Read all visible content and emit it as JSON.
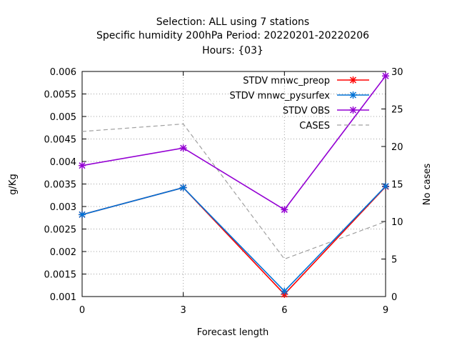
{
  "chart_data": {
    "type": "line",
    "title_lines": [
      "Selection: ALL using     7 stations",
      "Specific humidity 200hPa   Period: 20220201-20220206",
      "Hours: {03}"
    ],
    "xlabel": "Forecast length",
    "ylabel": "g/Kg",
    "y2label": "No cases",
    "x": [
      0,
      3,
      6,
      9
    ],
    "x_ticks": [
      "0",
      "3",
      "6",
      "9"
    ],
    "xlim": [
      0,
      9
    ],
    "ylim": [
      0.001,
      0.006
    ],
    "y_ticks": [
      "0.001",
      "0.0015",
      "0.002",
      "0.0025",
      "0.003",
      "0.0035",
      "0.004",
      "0.0045",
      "0.005",
      "0.0055",
      "0.006"
    ],
    "y2lim": [
      0,
      30
    ],
    "y2_ticks": [
      "0",
      "5",
      "10",
      "15",
      "20",
      "25",
      "30"
    ],
    "grid": true,
    "legend_position": "top-right",
    "series": [
      {
        "name": "STDV mnwc_preop",
        "axis": "y1",
        "color": "#ff0000",
        "style": "solid",
        "marker": "star",
        "values": [
          0.00282,
          0.00342,
          0.00105,
          0.00344
        ]
      },
      {
        "name": "STDV mnwc_pysurfex",
        "axis": "y1",
        "color": "#0072d6",
        "style": "solid",
        "marker": "star",
        "values": [
          0.00282,
          0.00342,
          0.00112,
          0.00345
        ]
      },
      {
        "name": "STDV OBS",
        "axis": "y1",
        "color": "#9400d3",
        "style": "solid",
        "marker": "star",
        "values": [
          0.00391,
          0.0043,
          0.00293,
          0.0059
        ]
      },
      {
        "name": "CASES",
        "axis": "y2",
        "color": "#a0a0a0",
        "style": "dashed",
        "marker": "none",
        "values": [
          22,
          23,
          5,
          10
        ]
      }
    ]
  }
}
